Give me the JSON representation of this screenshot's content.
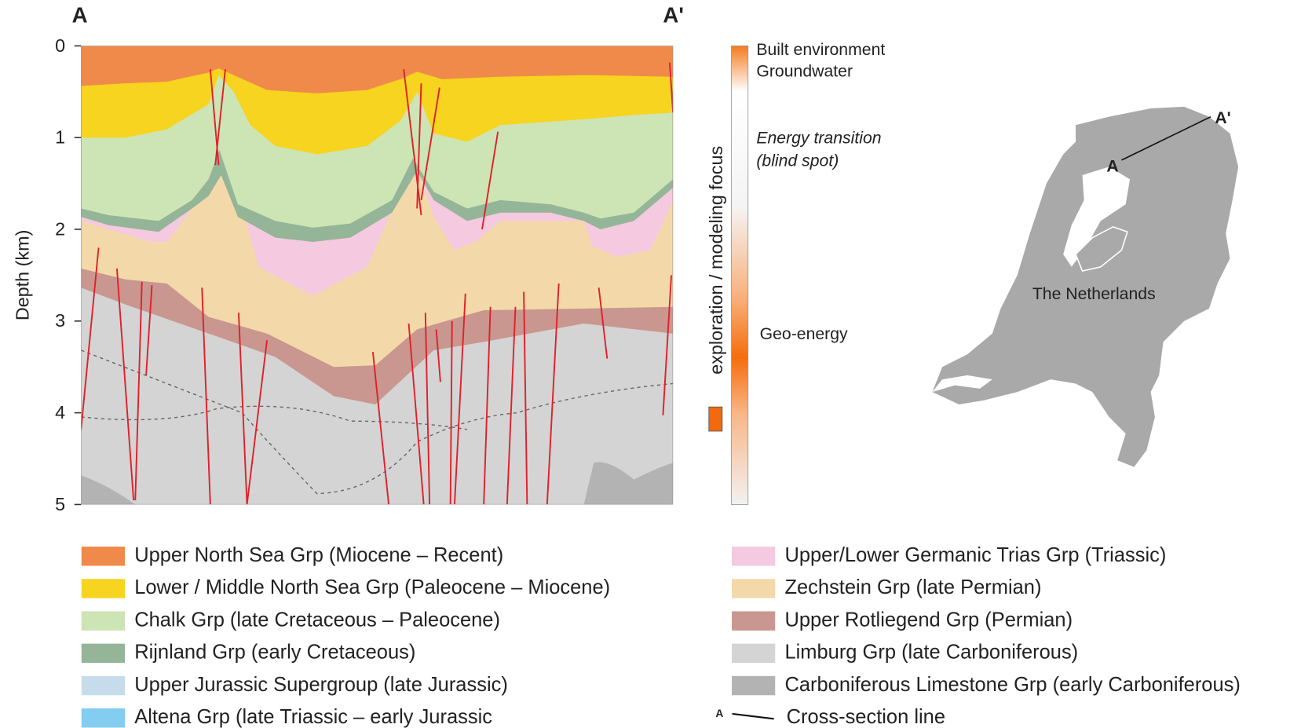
{
  "section": {
    "start_label": "A",
    "end_label": "A'",
    "axis_label": "Depth (km)",
    "depth_ticks": [
      0,
      1,
      2,
      3,
      4,
      5
    ]
  },
  "focus_bar": {
    "label": "exploration / modeling focus",
    "annotations": [
      "Built environment",
      "Groundwater",
      "Energy transition",
      "(blind spot)",
      "Geo-energy"
    ]
  },
  "map": {
    "label": "The Netherlands",
    "start_label": "A",
    "end_label": "A'"
  },
  "legend": [
    {
      "name": "Upper North Sea Grp (Miocene – Recent)",
      "color": "#f08a4b"
    },
    {
      "name": "Lower / Middle North Sea Grp (Paleocene – Miocene)",
      "color": "#f7d41f"
    },
    {
      "name": "Chalk Grp (late Cretaceous – Paleocene)",
      "color": "#cde4b5"
    },
    {
      "name": "Rijnland Grp (early Cretaceous)",
      "color": "#94b597"
    },
    {
      "name": "Upper Jurassic Supergroup (late Jurassic)",
      "color": "#c6dcea"
    },
    {
      "name": "Altena Grp (late Triassic – early Jurassic",
      "color": "#82cdf0"
    },
    {
      "name": "Upper/Lower Germanic Trias Grp (Triassic)",
      "color": "#f5c9df"
    },
    {
      "name": "Zechstein Grp (late Permian)",
      "color": "#f3d9aa"
    },
    {
      "name": "Upper Rotliegend Grp (Permian)",
      "color": "#c9978f"
    },
    {
      "name": "Limburg Grp (late Carboniferous)",
      "color": "#d4d4d4"
    },
    {
      "name": "Carboniferous Limestone Grp (early Carboniferous)",
      "color": "#b3b3b3"
    }
  ],
  "cross_section_legend": {
    "symbol": "A",
    "label": "Cross-section line"
  }
}
